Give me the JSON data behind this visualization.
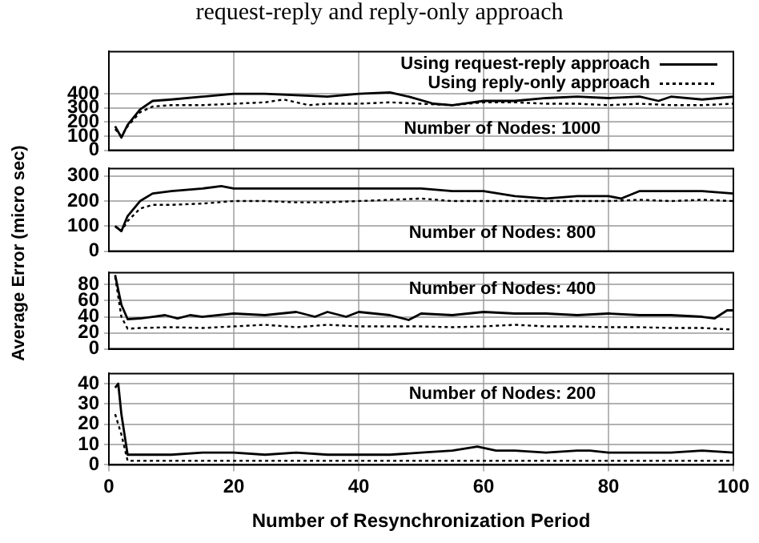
{
  "chart_data": [
    {
      "type": "line",
      "title": "request-reply and reply-only approach",
      "annotations": [
        "Number of Nodes: 1000"
      ],
      "legend": "top right",
      "grid": true,
      "tick_labels": "y",
      "xlim": [
        0,
        100
      ],
      "xticks": [
        0,
        20,
        40,
        60,
        80,
        100
      ],
      "ylim": [
        0,
        700
      ],
      "yticks": [
        0,
        100,
        200,
        300,
        400
      ],
      "series": [
        {
          "name": "Using request-reply approach",
          "color": "#000000",
          "line_style": "solid",
          "x": [
            1,
            2,
            3,
            5,
            7,
            10,
            15,
            20,
            25,
            30,
            35,
            40,
            45,
            48,
            52,
            55,
            60,
            65,
            70,
            75,
            80,
            85,
            88,
            90,
            95,
            100
          ],
          "values": [
            170,
            90,
            180,
            290,
            350,
            360,
            380,
            400,
            400,
            390,
            380,
            400,
            410,
            380,
            330,
            320,
            350,
            350,
            370,
            380,
            370,
            380,
            350,
            380,
            360,
            380
          ]
        },
        {
          "name": "Using reply-only approach",
          "color": "#000000",
          "line_style": "dotted",
          "x": [
            1,
            2,
            3,
            5,
            7,
            10,
            15,
            20,
            25,
            28,
            32,
            35,
            40,
            45,
            50,
            55,
            60,
            65,
            70,
            75,
            80,
            85,
            90,
            95,
            100
          ],
          "values": [
            150,
            100,
            170,
            270,
            310,
            320,
            320,
            330,
            340,
            360,
            320,
            330,
            330,
            340,
            330,
            320,
            340,
            340,
            330,
            330,
            320,
            330,
            320,
            320,
            330
          ]
        }
      ]
    },
    {
      "type": "line",
      "ylabel": "Average Error (micro sec)",
      "annotations": [
        "Number of Nodes: 800"
      ],
      "grid": true,
      "tick_labels": "y",
      "xlim": [
        0,
        100
      ],
      "xticks": [
        0,
        20,
        40,
        60,
        80,
        100
      ],
      "ylim": [
        0,
        330
      ],
      "yticks": [
        0,
        100,
        200,
        300
      ],
      "series": [
        {
          "color": "#000000",
          "line_style": "solid",
          "x": [
            1,
            2,
            3,
            5,
            7,
            10,
            15,
            18,
            20,
            25,
            30,
            35,
            40,
            45,
            50,
            55,
            60,
            65,
            70,
            75,
            80,
            82,
            85,
            90,
            95,
            100
          ],
          "values": [
            100,
            80,
            140,
            200,
            230,
            240,
            250,
            260,
            250,
            250,
            250,
            250,
            250,
            250,
            250,
            240,
            240,
            220,
            210,
            220,
            220,
            210,
            240,
            240,
            240,
            230
          ]
        },
        {
          "color": "#000000",
          "line_style": "dotted",
          "x": [
            1,
            2,
            3,
            5,
            7,
            10,
            15,
            20,
            25,
            30,
            35,
            40,
            45,
            50,
            55,
            60,
            65,
            70,
            75,
            80,
            85,
            90,
            95,
            100
          ],
          "values": [
            100,
            80,
            120,
            170,
            185,
            185,
            190,
            200,
            200,
            195,
            195,
            200,
            205,
            210,
            200,
            200,
            200,
            200,
            200,
            200,
            205,
            200,
            205,
            200
          ]
        }
      ]
    },
    {
      "type": "line",
      "annotations": [
        "Number of Nodes: 400"
      ],
      "grid": true,
      "tick_labels": "y",
      "xlim": [
        0,
        100
      ],
      "xticks": [
        0,
        20,
        40,
        60,
        80,
        100
      ],
      "ylim": [
        0,
        95
      ],
      "yticks": [
        0,
        20,
        40,
        60,
        80
      ],
      "series": [
        {
          "color": "#000000",
          "line_style": "solid",
          "x": [
            1,
            2,
            3,
            5,
            7,
            9,
            11,
            13,
            15,
            20,
            25,
            30,
            33,
            35,
            38,
            40,
            45,
            48,
            50,
            55,
            60,
            65,
            70,
            75,
            80,
            85,
            90,
            95,
            97,
            99,
            100
          ],
          "values": [
            92,
            55,
            37,
            38,
            40,
            42,
            38,
            42,
            40,
            44,
            42,
            46,
            40,
            46,
            40,
            46,
            42,
            36,
            44,
            42,
            46,
            44,
            44,
            42,
            44,
            42,
            42,
            40,
            38,
            48,
            48
          ]
        },
        {
          "color": "#000000",
          "line_style": "dotted",
          "x": [
            1,
            2,
            3,
            5,
            10,
            15,
            20,
            25,
            30,
            35,
            40,
            45,
            50,
            55,
            60,
            65,
            70,
            75,
            80,
            85,
            90,
            95,
            100
          ],
          "values": [
            90,
            40,
            25,
            26,
            27,
            26,
            28,
            30,
            27,
            30,
            28,
            28,
            28,
            27,
            28,
            30,
            28,
            28,
            27,
            27,
            26,
            26,
            24
          ]
        }
      ]
    },
    {
      "type": "line",
      "xlabel": "Number of Resynchronization Period",
      "annotations": [
        "Number of Nodes: 200"
      ],
      "grid": true,
      "xlim": [
        0,
        100
      ],
      "xticks": [
        0,
        20,
        40,
        60,
        80,
        100
      ],
      "ylim": [
        0,
        45
      ],
      "yticks": [
        0,
        10,
        20,
        30,
        40
      ],
      "series": [
        {
          "color": "#000000",
          "line_style": "solid",
          "x": [
            1,
            1.5,
            2,
            3,
            5,
            10,
            15,
            20,
            25,
            30,
            35,
            40,
            45,
            50,
            55,
            57,
            59,
            62,
            65,
            70,
            75,
            77,
            80,
            85,
            90,
            95,
            100
          ],
          "values": [
            38,
            40,
            25,
            5,
            5,
            5,
            6,
            6,
            5,
            6,
            5,
            5,
            5,
            6,
            7,
            8,
            9,
            7,
            7,
            6,
            7,
            7,
            6,
            6,
            6,
            7,
            6
          ]
        },
        {
          "color": "#000000",
          "line_style": "dotted",
          "x": [
            1,
            2,
            3,
            10,
            20,
            30,
            40,
            50,
            60,
            70,
            80,
            90,
            100
          ],
          "values": [
            25,
            15,
            2,
            2,
            2,
            2,
            2,
            2,
            2,
            2,
            2,
            2,
            2
          ]
        }
      ]
    }
  ]
}
